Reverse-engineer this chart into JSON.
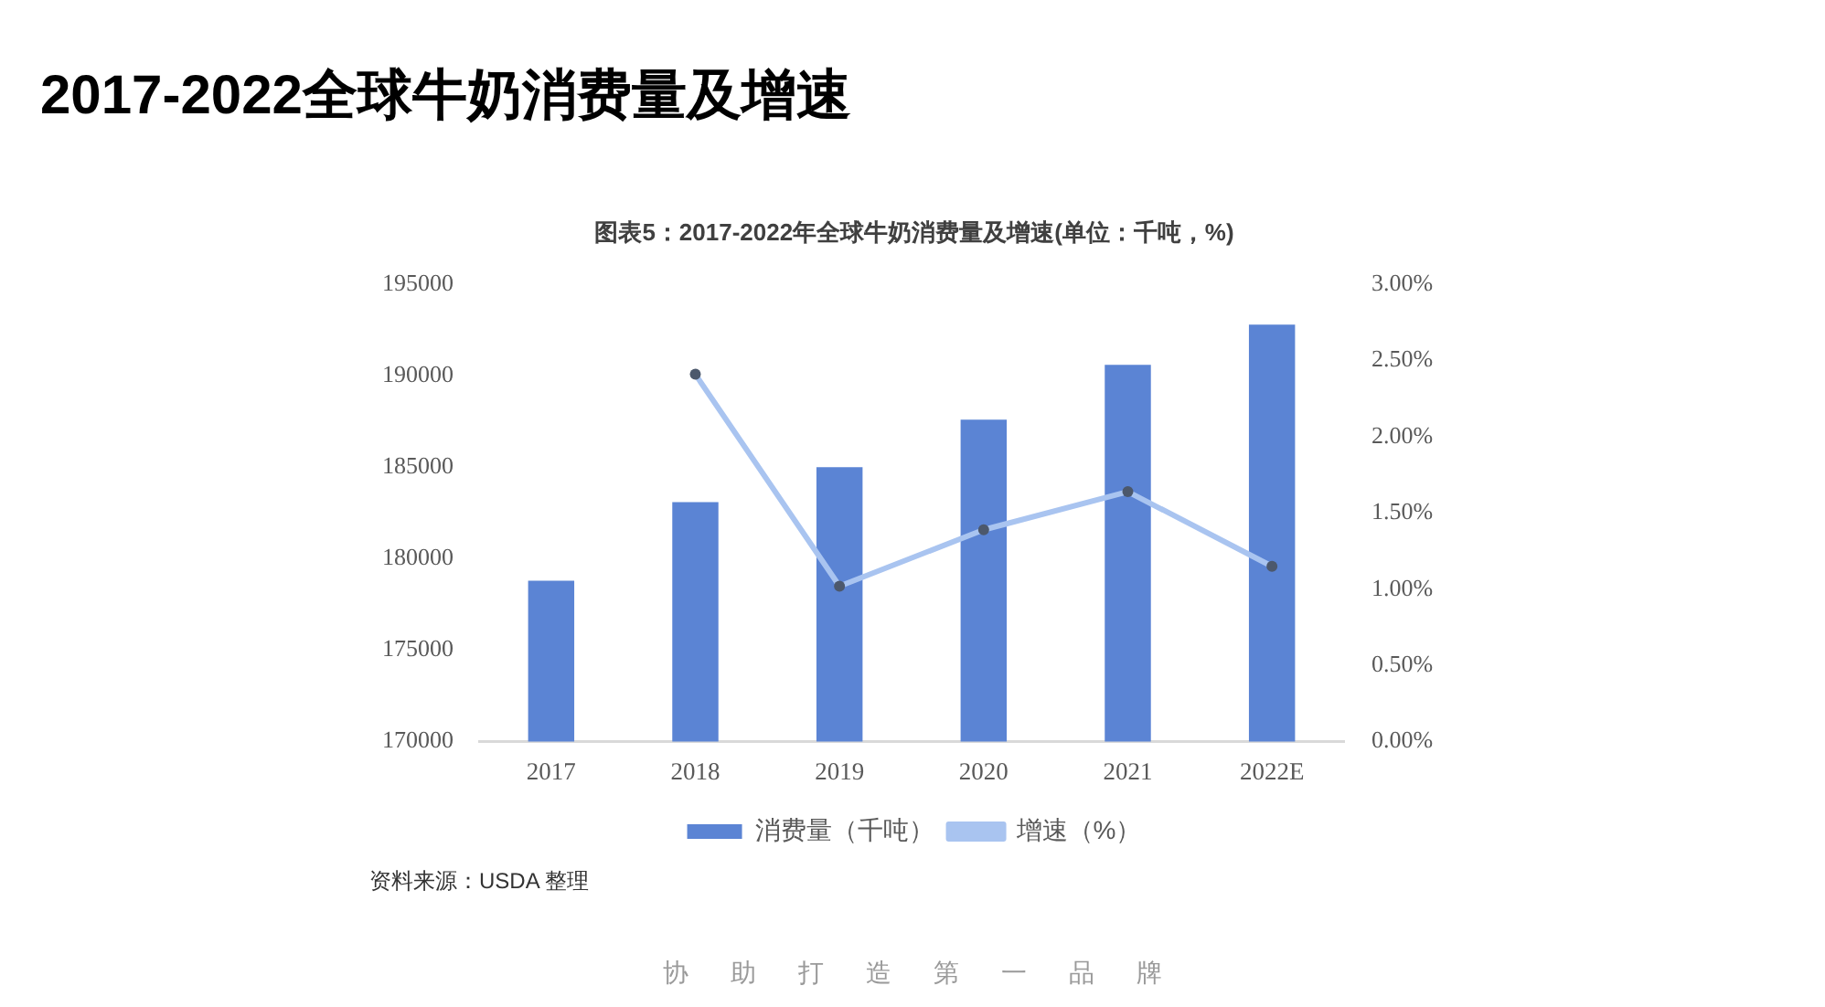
{
  "chart_data": {
    "type": "bar",
    "title": "2017-2022全球牛奶消费量及增速",
    "subtitle": "图表5：2017-2022年全球牛奶消费量及增速(单位：千吨，%)",
    "categories": [
      "2017",
      "2018",
      "2019",
      "2020",
      "2021",
      "2022E"
    ],
    "series": [
      {
        "name": "消费量（千吨）",
        "color": "#5b84d4",
        "values": [
          178800,
          183100,
          185000,
          187600,
          190600,
          192800
        ]
      },
      {
        "name": "增速（%）",
        "type": "line",
        "axis": "y2",
        "color": "#a9c4f0",
        "values": [
          null,
          2.41,
          1.02,
          1.39,
          1.64,
          1.15
        ]
      }
    ],
    "ylim": [
      170000,
      195000
    ],
    "yticks": [
      170000,
      175000,
      180000,
      185000,
      190000,
      195000
    ],
    "y2lim": [
      0,
      3
    ],
    "y2ticks": [
      {
        "value": 0,
        "label": "0.00%"
      },
      {
        "value": 0.5,
        "label": "0.50%"
      },
      {
        "value": 1,
        "label": "1.00%"
      },
      {
        "value": 1.5,
        "label": "1.50%"
      },
      {
        "value": 2,
        "label": "2.00%"
      },
      {
        "value": 2.5,
        "label": "2.50%"
      },
      {
        "value": 3,
        "label": "3.00%"
      }
    ],
    "legend": "bottom",
    "marker": "circle",
    "annotations": [
      "资料来源：USDA 整理",
      "协助打造第一品牌"
    ]
  }
}
